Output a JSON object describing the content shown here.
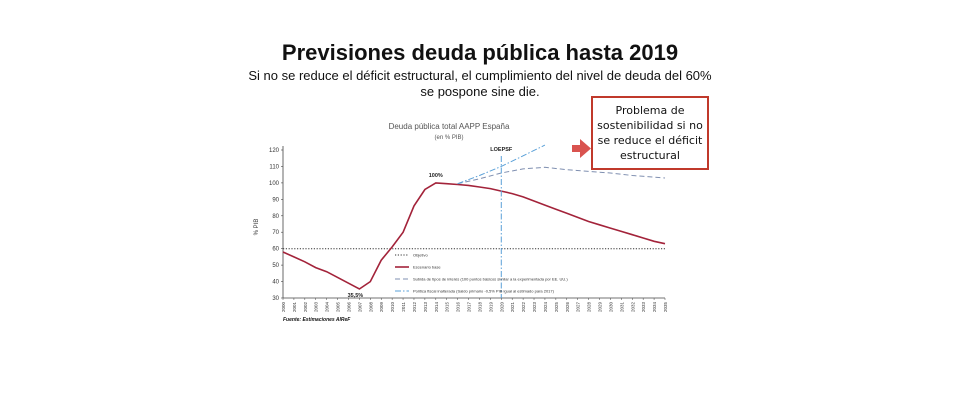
{
  "slide": {
    "title": "Previsiones deuda pública hasta 2019",
    "subtitle": "Si no se reduce el déficit estructural, el cumplimiento del nivel de deuda del 60% se pospone sine die.",
    "callout": "Problema de sostenibilidad si no se reduce el déficit estructural",
    "source": "Fuente: Estimaciones AIReF"
  },
  "chart_data": {
    "type": "line",
    "title": "Deuda pública total AAPP España",
    "subtitle": "(en % PIB)",
    "ylabel": "% PIB",
    "ylim": [
      30,
      120
    ],
    "yticks": [
      30,
      40,
      50,
      60,
      70,
      80,
      90,
      100,
      110,
      120
    ],
    "x": [
      2000,
      2001,
      2002,
      2003,
      2004,
      2005,
      2006,
      2007,
      2008,
      2009,
      2010,
      2011,
      2012,
      2013,
      2014,
      2015,
      2016,
      2017,
      2018,
      2019,
      2020,
      2021,
      2022,
      2023,
      2024,
      2025,
      2026,
      2027,
      2028,
      2029,
      2030,
      2031,
      2032,
      2033,
      2034,
      2035
    ],
    "annotations": [
      {
        "x": 2007,
        "y": 35.5,
        "text": "35,5%"
      },
      {
        "x": 2014,
        "y": 100,
        "text": "100%"
      },
      {
        "x": 2020,
        "y": 120,
        "text": "LOEPSF"
      }
    ],
    "series": [
      {
        "name": "Objetivo",
        "style": "dotted",
        "color": "#333333",
        "x": [
          2000,
          2035
        ],
        "values": [
          60,
          60
        ]
      },
      {
        "name": "Escenario base",
        "style": "solid",
        "color": "#a3233a",
        "x": [
          2000,
          2001,
          2002,
          2003,
          2004,
          2005,
          2006,
          2007,
          2008,
          2009,
          2010,
          2011,
          2012,
          2013,
          2014,
          2015,
          2016,
          2017,
          2018,
          2019,
          2020,
          2021,
          2022,
          2023,
          2024,
          2025,
          2026,
          2027,
          2028,
          2029,
          2030,
          2031,
          2032,
          2033,
          2034,
          2035
        ],
        "values": [
          58,
          55,
          52,
          48.5,
          46,
          42.5,
          39,
          35.5,
          40,
          53,
          61,
          70,
          86,
          96,
          100,
          99.5,
          99,
          98.5,
          97.5,
          96.5,
          95,
          93.5,
          91.5,
          89,
          86.5,
          84,
          81.5,
          79,
          76.5,
          74.5,
          72.5,
          70.5,
          68.5,
          66.5,
          64.5,
          63
        ]
      },
      {
        "name": "Subida de tipos de interés (100 puntos básicos similar a la experimentada por EE. UU.)",
        "style": "dashed",
        "color": "#7f8fb0",
        "x": [
          2016,
          2018,
          2020,
          2022,
          2024,
          2026,
          2028,
          2030,
          2032,
          2035
        ],
        "values": [
          99.5,
          102.5,
          106,
          108.5,
          109.5,
          108,
          107,
          106,
          104.5,
          103
        ]
      },
      {
        "name": "Política fiscal inalterada (Saldo primario -0,5% PIB igual al estimado para 2017)",
        "style": "dashdot",
        "color": "#5aa0d8",
        "x": [
          2016,
          2018,
          2020,
          2022,
          2024
        ],
        "values": [
          99.5,
          104.5,
          110,
          116.5,
          123
        ]
      }
    ],
    "grid": false,
    "legend_position": "bottom-left inside plot"
  },
  "colors": {
    "accent": "#a3233a",
    "callout_border": "#c0392b",
    "arrow": "#d9534f"
  }
}
